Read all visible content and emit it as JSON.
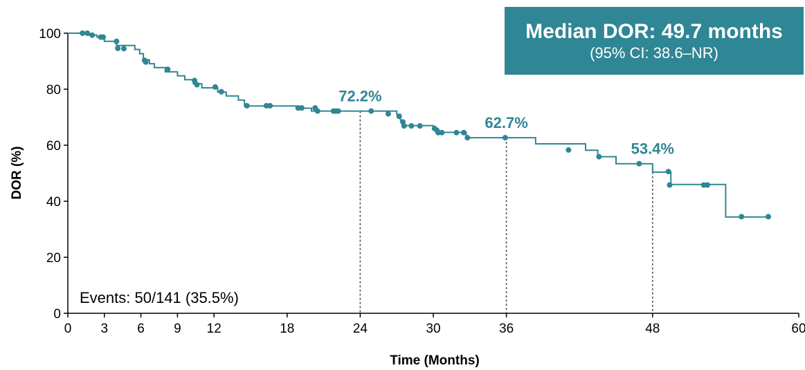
{
  "chart_data": {
    "type": "line",
    "title": "",
    "xlabel": "Time (Months)",
    "ylabel": "DOR (%)",
    "xlim": [
      0,
      60
    ],
    "ylim": [
      0,
      100
    ],
    "xticks": [
      0,
      3,
      6,
      9,
      12,
      18,
      24,
      30,
      36,
      48,
      60
    ],
    "yticks": [
      0,
      20,
      40,
      60,
      80,
      100
    ],
    "grid": false,
    "legend": "none",
    "color": "#2f8694",
    "series": [
      {
        "step": [
          [
            0,
            100
          ],
          [
            1.6,
            100
          ],
          [
            1.6,
            99.3
          ],
          [
            2.4,
            99.3
          ],
          [
            2.4,
            98.6
          ],
          [
            3,
            98.6
          ],
          [
            3,
            97.1
          ],
          [
            4,
            97.1
          ],
          [
            4,
            95.6
          ],
          [
            5.5,
            95.6
          ],
          [
            5.5,
            94.2
          ],
          [
            5.9,
            94.2
          ],
          [
            5.9,
            92.7
          ],
          [
            6.2,
            92.7
          ],
          [
            6.2,
            90.5
          ],
          [
            6.7,
            90.5
          ],
          [
            6.7,
            89.1
          ],
          [
            7.1,
            89.1
          ],
          [
            7.1,
            87.7
          ],
          [
            8,
            87.7
          ],
          [
            8,
            86.2
          ],
          [
            9,
            86.2
          ],
          [
            9,
            84.8
          ],
          [
            9.6,
            84.8
          ],
          [
            9.6,
            83.4
          ],
          [
            10.3,
            83.4
          ],
          [
            10.3,
            81.9
          ],
          [
            11,
            81.9
          ],
          [
            11,
            80.5
          ],
          [
            12.3,
            80.5
          ],
          [
            12.3,
            79
          ],
          [
            13,
            79
          ],
          [
            13,
            77.6
          ],
          [
            14,
            77.6
          ],
          [
            14,
            76.1
          ],
          [
            14.5,
            76.1
          ],
          [
            14.5,
            74
          ],
          [
            18.8,
            74
          ],
          [
            18.8,
            73.2
          ],
          [
            20,
            73.2
          ],
          [
            20,
            72.2
          ],
          [
            27,
            72.2
          ],
          [
            27,
            71
          ],
          [
            27.3,
            71
          ],
          [
            27.3,
            69
          ],
          [
            27.5,
            69
          ],
          [
            27.5,
            67
          ],
          [
            30,
            67
          ],
          [
            30,
            65.8
          ],
          [
            30.4,
            65.8
          ],
          [
            30.4,
            64.6
          ],
          [
            32.7,
            64.6
          ],
          [
            32.7,
            62.7
          ],
          [
            38.4,
            62.7
          ],
          [
            38.4,
            60.5
          ],
          [
            42.5,
            60.5
          ],
          [
            42.5,
            58.2
          ],
          [
            43.5,
            58.2
          ],
          [
            43.5,
            55.9
          ],
          [
            45,
            55.9
          ],
          [
            45,
            53.4
          ],
          [
            48,
            53.4
          ],
          [
            48,
            50.4
          ],
          [
            49.5,
            50.4
          ],
          [
            49.5,
            46
          ],
          [
            54,
            46
          ],
          [
            54,
            34.4
          ],
          [
            57.5,
            34.4
          ]
        ],
        "censored": [
          [
            1.2,
            100
          ],
          [
            1.6,
            100
          ],
          [
            2,
            99.3
          ],
          [
            2.7,
            98.6
          ],
          [
            2.9,
            98.6
          ],
          [
            4,
            97.1
          ],
          [
            4.1,
            94.6
          ],
          [
            4.6,
            94.5
          ],
          [
            6.3,
            90.3
          ],
          [
            6.4,
            89.7
          ],
          [
            8.2,
            87.1
          ],
          [
            10.4,
            83.1
          ],
          [
            10.6,
            81.6
          ],
          [
            12.1,
            80.8
          ],
          [
            12.6,
            79.1
          ],
          [
            14.7,
            74.1
          ],
          [
            16.3,
            74.1
          ],
          [
            16.6,
            74.1
          ],
          [
            18.9,
            73.3
          ],
          [
            19.2,
            73.3
          ],
          [
            20.3,
            73.3
          ],
          [
            20.5,
            72.2
          ],
          [
            21.8,
            72.2
          ],
          [
            22,
            72.2
          ],
          [
            22.2,
            72.2
          ],
          [
            24.9,
            72.2
          ],
          [
            26.3,
            71.2
          ],
          [
            27.2,
            70.3
          ],
          [
            27.5,
            68.3
          ],
          [
            27.6,
            66.9
          ],
          [
            28.2,
            66.9
          ],
          [
            28.9,
            66.9
          ],
          [
            30.1,
            66
          ],
          [
            30.3,
            65.3
          ],
          [
            30.4,
            64.5
          ],
          [
            30.7,
            64.5
          ],
          [
            31.9,
            64.5
          ],
          [
            32.5,
            64.5
          ],
          [
            32.8,
            62.7
          ],
          [
            35.9,
            62.7
          ],
          [
            41.1,
            58.3
          ],
          [
            43.6,
            55.9
          ],
          [
            46.9,
            53.4
          ],
          [
            49.3,
            50.6
          ],
          [
            49.4,
            45.8
          ],
          [
            52.2,
            45.8
          ],
          [
            52.5,
            45.8
          ],
          [
            55.3,
            34.5
          ],
          [
            57.5,
            34.5
          ]
        ]
      }
    ],
    "landmarks": [
      {
        "x": 24,
        "y": 72.2,
        "label": "72.2%"
      },
      {
        "x": 36,
        "y": 62.7,
        "label": "62.7%"
      },
      {
        "x": 48,
        "y": 53.4,
        "label": "53.4%"
      }
    ]
  },
  "median_box": {
    "main": "Median DOR: 49.7 months",
    "ci": "(95% CI: 38.6–NR)"
  },
  "events": "Events: 50/141 (35.5%)"
}
